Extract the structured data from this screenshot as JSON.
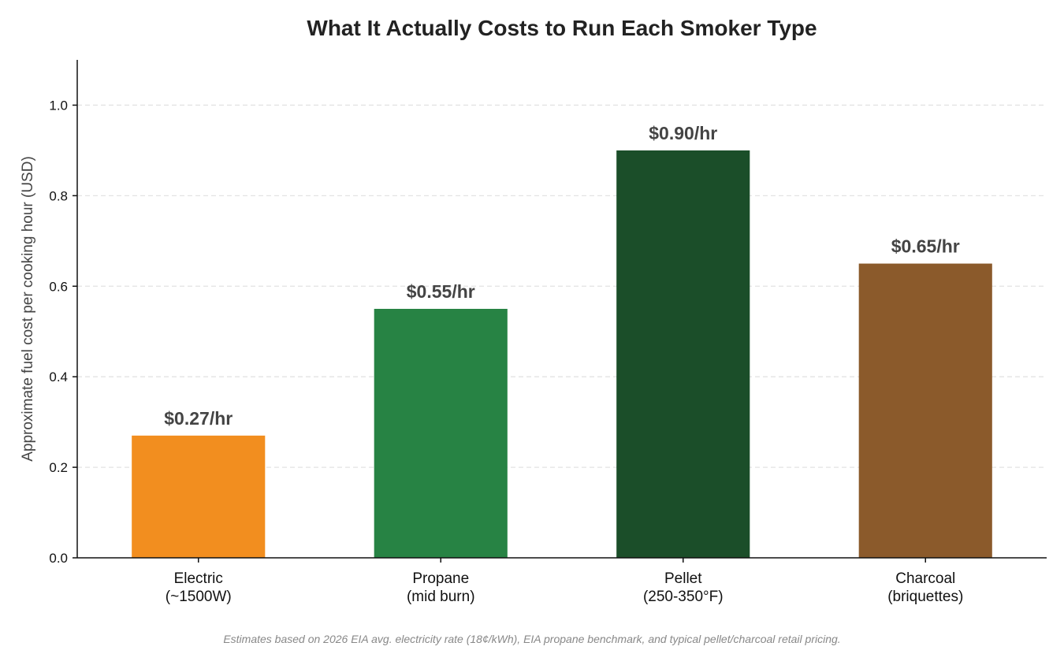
{
  "chart_data": {
    "type": "bar",
    "title": "What It Actually Costs to Run Each Smoker Type",
    "ylabel": "Approximate fuel cost per cooking hour (USD)",
    "xlabel": "",
    "ylim": [
      0,
      1.1
    ],
    "yticks": [
      0.0,
      0.2,
      0.4,
      0.6,
      0.8,
      1.0
    ],
    "ytick_labels": [
      "0.0",
      "0.2",
      "0.4",
      "0.6",
      "0.8",
      "1.0"
    ],
    "grid": "horizontal dashed",
    "categories": [
      {
        "line1": "Electric",
        "line2": "(~1500W)"
      },
      {
        "line1": "Propane",
        "line2": "(mid burn)"
      },
      {
        "line1": "Pellet",
        "line2": "(250-350°F)"
      },
      {
        "line1": "Charcoal",
        "line2": "(briquettes)"
      }
    ],
    "values": [
      0.27,
      0.55,
      0.9,
      0.65
    ],
    "data_labels": [
      "$0.27/hr",
      "$0.55/hr",
      "$0.90/hr",
      "$0.65/hr"
    ],
    "colors": [
      "#f28e1f",
      "#278344",
      "#1b4e29",
      "#8b5a2b"
    ],
    "footnote": "Estimates based on 2026 EIA avg. electricity rate (18¢/kWh), EIA propane benchmark, and typical pellet/charcoal retail pricing."
  }
}
